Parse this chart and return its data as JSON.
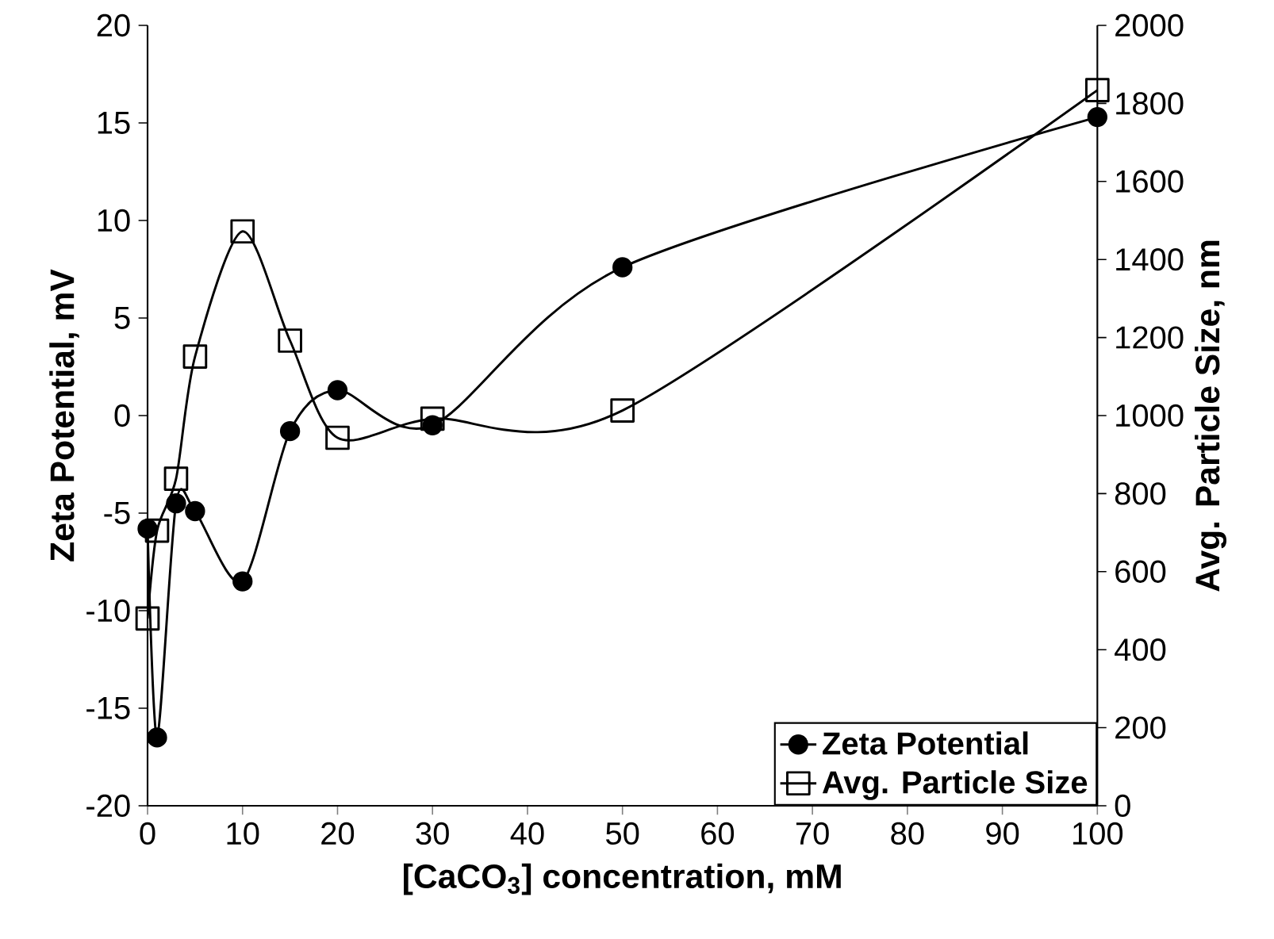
{
  "chart_data": {
    "type": "line",
    "xlabel": "[CaCO$_{3}$] concentration, mM",
    "ylabel": "Zeta Potential, mV",
    "y2label": "Avg. Particle Size, nm",
    "x": [
      0,
      1,
      3,
      5,
      10,
      15,
      20,
      30,
      50,
      100
    ],
    "series": [
      {
        "name": "Zeta Potential",
        "color": "#000000",
        "marker": "circle",
        "values": [
          -5.8,
          -16.5,
          -4.5,
          -4.9,
          -8.5,
          -0.8,
          1.3,
          -0.5,
          7.6,
          15.3
        ]
      },
      {
        "name": "Avg. Particle Size",
        "color": "#000000",
        "marker": "square",
        "axis": "y2",
        "values": [
          480,
          705,
          838,
          1151,
          1472,
          1192,
          943,
          992,
          1013,
          1834
        ]
      }
    ],
    "xlim": [
      0,
      100
    ],
    "xticks": [
      0,
      10,
      20,
      30,
      40,
      50,
      60,
      70,
      80,
      90,
      100
    ],
    "ylim": [
      -20,
      20
    ],
    "yticks": [
      -20,
      -15,
      -10,
      -5,
      0,
      5,
      10,
      15,
      20
    ],
    "y2lim": [
      0,
      2000
    ],
    "y2ticks": [
      0,
      200,
      400,
      600,
      800,
      1000,
      1200,
      1400,
      1600,
      1800,
      2000
    ],
    "legend": "bottom right",
    "line_style": "solid"
  }
}
